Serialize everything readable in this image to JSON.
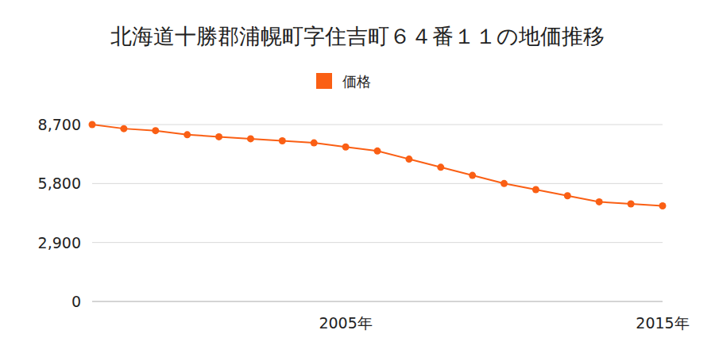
{
  "chart_data": {
    "type": "line",
    "title": "北海道十勝郡浦幌町字住吉町６４番１１の地価推移",
    "categories": [
      null,
      null,
      null,
      null,
      null,
      null,
      null,
      null,
      "2005年",
      null,
      null,
      null,
      null,
      null,
      null,
      null,
      null,
      null,
      "2015年"
    ],
    "series": [
      {
        "name": "価格",
        "color": "#fa5f14",
        "marker": "circle",
        "values": [
          8700,
          8500,
          8400,
          8200,
          8100,
          8000,
          7900,
          7800,
          7600,
          7400,
          7000,
          6600,
          6200,
          5800,
          5500,
          5200,
          4900,
          4800,
          4700
        ]
      }
    ],
    "ylim": [
      0,
      8700
    ],
    "yticks": [
      0,
      {
        "value": 2900,
        "label": "2,900"
      },
      {
        "value": 5800,
        "label": "5,800"
      },
      {
        "value": 8700,
        "label": "8,700"
      }
    ],
    "grid": true,
    "legend": "top"
  }
}
